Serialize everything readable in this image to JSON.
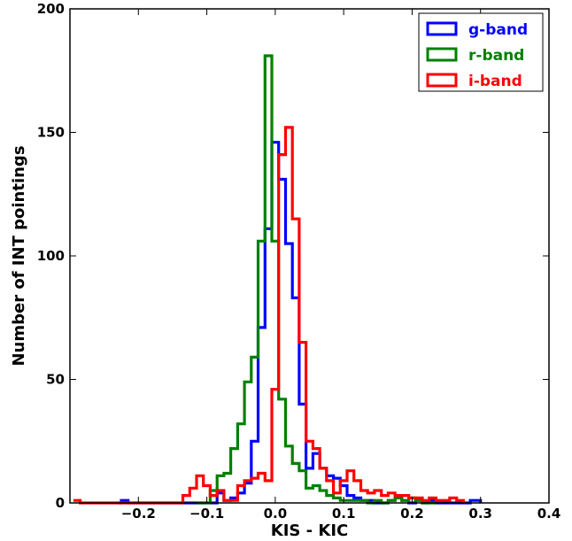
{
  "chart_data": {
    "type": "histogram",
    "title": "",
    "xlabel": "KIS - KIC",
    "ylabel": "Number of INT pointings",
    "xlim": [
      -0.3,
      0.4
    ],
    "ylim": [
      0,
      200
    ],
    "xticks": [
      -0.2,
      -0.1,
      0.0,
      0.1,
      0.2,
      0.3,
      0.4
    ],
    "xtick_labels": [
      "−0.2",
      "−0.1",
      "0.0",
      "0.1",
      "0.2",
      "0.3",
      "0.4"
    ],
    "yticks": [
      0,
      50,
      100,
      150,
      200
    ],
    "ytick_labels": [
      "0",
      "50",
      "100",
      "150",
      "200"
    ],
    "grid": false,
    "legend_position": "top-right",
    "series": [
      {
        "name": "g-band",
        "color": "#0000ff",
        "steps": [
          [
            -0.23,
            0
          ],
          [
            -0.225,
            1
          ],
          [
            -0.215,
            0
          ],
          [
            -0.085,
            4
          ],
          [
            -0.075,
            1
          ],
          [
            -0.065,
            2
          ],
          [
            -0.055,
            4
          ],
          [
            -0.045,
            8
          ],
          [
            -0.035,
            25
          ],
          [
            -0.025,
            71
          ],
          [
            -0.015,
            111
          ],
          [
            -0.005,
            146
          ],
          [
            0.005,
            131
          ],
          [
            0.015,
            105
          ],
          [
            0.025,
            83
          ],
          [
            0.035,
            40
          ],
          [
            0.045,
            14
          ],
          [
            0.055,
            20
          ],
          [
            0.065,
            14
          ],
          [
            0.075,
            11
          ],
          [
            0.085,
            10
          ],
          [
            0.095,
            7
          ],
          [
            0.105,
            3
          ],
          [
            0.115,
            2
          ],
          [
            0.125,
            1
          ],
          [
            0.135,
            1
          ],
          [
            0.145,
            0
          ],
          [
            0.155,
            0
          ],
          [
            0.165,
            1
          ],
          [
            0.175,
            2
          ],
          [
            0.185,
            1
          ],
          [
            0.195,
            0
          ],
          [
            0.205,
            1
          ],
          [
            0.215,
            0
          ],
          [
            0.225,
            1
          ],
          [
            0.235,
            0
          ],
          [
            0.245,
            0
          ],
          [
            0.255,
            0
          ],
          [
            0.265,
            0
          ],
          [
            0.275,
            0
          ],
          [
            0.285,
            1
          ],
          [
            0.3,
            0
          ]
        ]
      },
      {
        "name": "r-band",
        "color": "#008000",
        "steps": [
          [
            -0.115,
            0
          ],
          [
            -0.105,
            0
          ],
          [
            -0.095,
            5
          ],
          [
            -0.085,
            11
          ],
          [
            -0.075,
            12
          ],
          [
            -0.065,
            22
          ],
          [
            -0.055,
            32
          ],
          [
            -0.045,
            49
          ],
          [
            -0.035,
            59
          ],
          [
            -0.025,
            106
          ],
          [
            -0.015,
            181
          ],
          [
            -0.005,
            106
          ],
          [
            0.005,
            42
          ],
          [
            0.015,
            23
          ],
          [
            0.025,
            16
          ],
          [
            0.035,
            13
          ],
          [
            0.045,
            6
          ],
          [
            0.055,
            7
          ],
          [
            0.065,
            5
          ],
          [
            0.075,
            3
          ],
          [
            0.085,
            2
          ],
          [
            0.095,
            1
          ],
          [
            0.105,
            1
          ],
          [
            0.115,
            1
          ],
          [
            0.125,
            1
          ],
          [
            0.135,
            0
          ],
          [
            0.145,
            1
          ],
          [
            0.155,
            0
          ],
          [
            0.165,
            1
          ],
          [
            0.175,
            2
          ],
          [
            0.185,
            1
          ],
          [
            0.195,
            2
          ],
          [
            0.205,
            1
          ],
          [
            0.215,
            0
          ],
          [
            0.225,
            0
          ],
          [
            0.235,
            0
          ]
        ]
      },
      {
        "name": "i-band",
        "color": "#ff0000",
        "steps": [
          [
            -0.295,
            1
          ],
          [
            -0.285,
            0
          ],
          [
            -0.135,
            3
          ],
          [
            -0.125,
            6
          ],
          [
            -0.115,
            11
          ],
          [
            -0.105,
            7
          ],
          [
            -0.095,
            3
          ],
          [
            -0.085,
            5
          ],
          [
            -0.075,
            1
          ],
          [
            -0.065,
            1
          ],
          [
            -0.055,
            7
          ],
          [
            -0.045,
            9
          ],
          [
            -0.035,
            10
          ],
          [
            -0.025,
            12
          ],
          [
            -0.015,
            9
          ],
          [
            -0.005,
            46
          ],
          [
            0.005,
            141
          ],
          [
            0.015,
            152
          ],
          [
            0.025,
            115
          ],
          [
            0.035,
            65
          ],
          [
            0.045,
            25
          ],
          [
            0.055,
            22
          ],
          [
            0.065,
            14
          ],
          [
            0.075,
            9
          ],
          [
            0.085,
            4
          ],
          [
            0.095,
            9
          ],
          [
            0.105,
            13
          ],
          [
            0.115,
            9
          ],
          [
            0.125,
            5
          ],
          [
            0.135,
            4
          ],
          [
            0.145,
            5
          ],
          [
            0.155,
            3
          ],
          [
            0.165,
            4
          ],
          [
            0.175,
            3
          ],
          [
            0.185,
            3
          ],
          [
            0.195,
            2
          ],
          [
            0.205,
            2
          ],
          [
            0.215,
            1
          ],
          [
            0.225,
            2
          ],
          [
            0.235,
            1
          ],
          [
            0.245,
            1
          ],
          [
            0.255,
            2
          ],
          [
            0.265,
            1
          ],
          [
            0.275,
            0
          ]
        ]
      }
    ]
  }
}
